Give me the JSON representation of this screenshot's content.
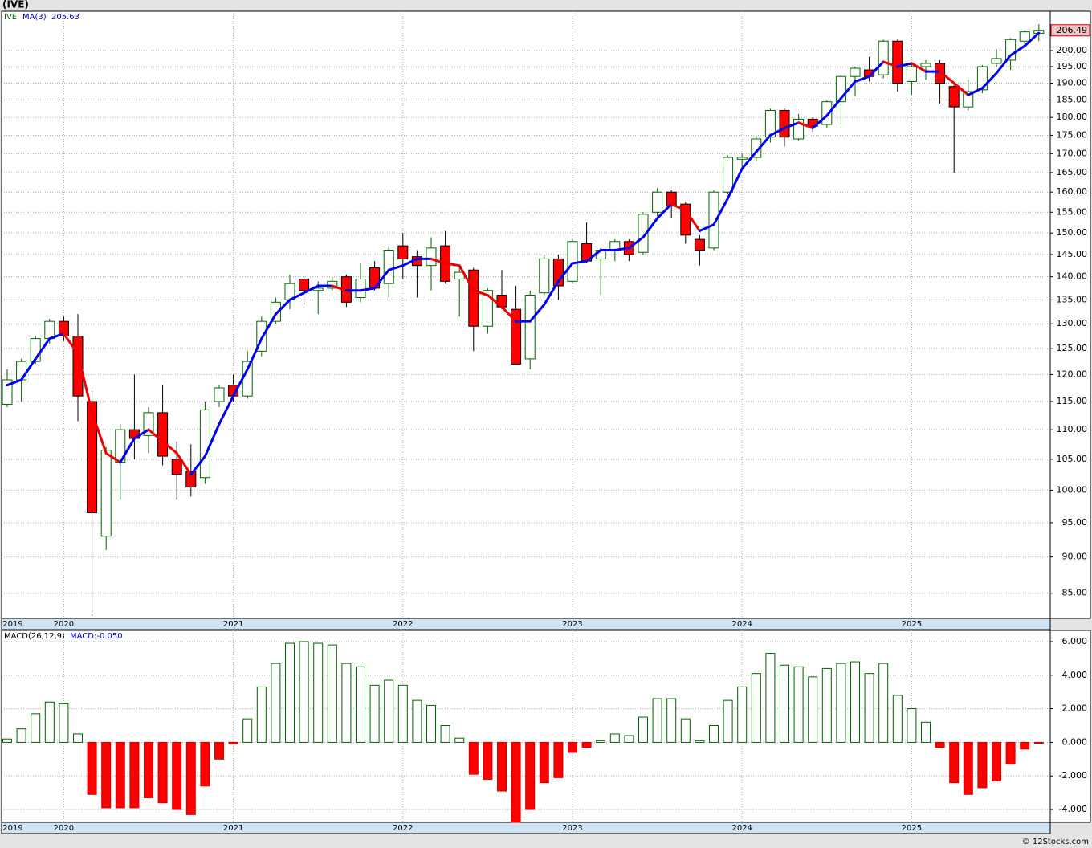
{
  "chart_data": [
    {
      "type": "candlestick",
      "title": "(IVE)",
      "ticker": "IVE",
      "log_scale": true,
      "grid": true,
      "up_color": "#006400",
      "down_color": "#ff0000",
      "categories": [
        "2019",
        null,
        null,
        null,
        "2020",
        null,
        null,
        null,
        null,
        null,
        null,
        null,
        null,
        null,
        null,
        null,
        "2021",
        null,
        null,
        null,
        null,
        null,
        null,
        null,
        null,
        null,
        null,
        null,
        "2022",
        null,
        null,
        null,
        null,
        null,
        null,
        null,
        null,
        null,
        null,
        null,
        "2023",
        null,
        null,
        null,
        null,
        null,
        null,
        null,
        null,
        null,
        null,
        null,
        "2024",
        null,
        null,
        null,
        null,
        null,
        null,
        null,
        null,
        null,
        null,
        null,
        "2025",
        null,
        null,
        null,
        null,
        null,
        null,
        null,
        null,
        null
      ],
      "open": [
        114.5,
        119,
        122.5,
        127,
        130.5,
        127.5,
        115,
        93,
        104.5,
        110,
        109,
        113,
        105,
        103,
        102,
        115,
        118,
        116,
        124.5,
        130.5,
        135,
        139.5,
        137,
        137.5,
        140,
        135.5,
        142,
        138.5,
        147,
        144.5,
        142.5,
        147,
        139.5,
        141.5,
        129.5,
        136,
        133,
        123,
        136.5,
        144,
        139,
        147.5,
        144,
        146,
        148,
        145.5,
        155,
        160,
        157,
        148.5,
        146.5,
        160,
        168.5,
        169,
        174.5,
        182,
        174,
        179.5,
        178,
        184.5,
        192,
        194,
        192.5,
        203,
        190.5,
        195,
        196,
        189,
        183,
        188,
        196,
        197,
        203,
        205.5
      ],
      "high": [
        121,
        123,
        127.5,
        131,
        131.5,
        132,
        117,
        107,
        111,
        120,
        114,
        118,
        108,
        107.5,
        115,
        118,
        120,
        124.5,
        131.5,
        135.5,
        140.5,
        140,
        139,
        140,
        140.5,
        143,
        143.5,
        147,
        150,
        146,
        149,
        150.5,
        142,
        142,
        137.5,
        141.5,
        138,
        137,
        145,
        145,
        148.5,
        152.5,
        146.5,
        148.5,
        148.5,
        155,
        161,
        160.5,
        157.5,
        149.5,
        160.5,
        169.5,
        170,
        175,
        182.5,
        182.5,
        181,
        180,
        185,
        192.5,
        195,
        198,
        203.5,
        203.5,
        196,
        197,
        197,
        189.5,
        191,
        195.5,
        200.5,
        204,
        206.5,
        208.5
      ],
      "low": [
        114,
        115,
        122,
        126,
        126.5,
        111.5,
        82,
        91,
        98.5,
        105,
        106,
        104,
        98.5,
        99,
        101,
        114,
        115,
        115.5,
        123.5,
        130,
        133,
        134,
        132,
        137,
        133.5,
        134.5,
        137,
        135.5,
        139.5,
        135.5,
        137,
        138.5,
        131.5,
        124.5,
        128,
        133,
        122,
        121,
        136,
        135,
        138.5,
        143,
        136,
        143.5,
        143.5,
        145,
        154,
        153.5,
        147.5,
        142.5,
        146,
        159.5,
        165.5,
        168,
        173,
        172,
        173.5,
        176,
        177,
        178,
        186,
        190.5,
        191.5,
        187.5,
        186.5,
        191,
        184,
        165,
        182,
        187,
        195,
        194,
        202,
        203
      ],
      "close": [
        119,
        122.5,
        127,
        130.5,
        127.5,
        116,
        96.5,
        106.5,
        110,
        108.5,
        113,
        105.5,
        102.5,
        100.5,
        113.5,
        117.5,
        116,
        122.5,
        130.5,
        134.5,
        138.5,
        137,
        137.5,
        139,
        134.5,
        139.5,
        137.5,
        146,
        144,
        142.5,
        146.5,
        139,
        141,
        129.5,
        137,
        133.5,
        122,
        136,
        144,
        138,
        148,
        143.5,
        146,
        148,
        145,
        154.5,
        160,
        156.5,
        149.5,
        146,
        160,
        169,
        169,
        174,
        182,
        174.5,
        179.5,
        177.5,
        184.5,
        192,
        194.5,
        192,
        203,
        190,
        195,
        196,
        190,
        183,
        187.5,
        195,
        197.5,
        203.5,
        206,
        206.49
      ],
      "last_label": "206.49",
      "ma": {
        "name": "MA(3)",
        "rising_color": "#0000ee",
        "falling_color": "#ee0000",
        "last_label": "205.63",
        "values": [
          118,
          119,
          123,
          127,
          128,
          124,
          113,
          106,
          104.5,
          108.5,
          110,
          108,
          106,
          102.5,
          105.5,
          111,
          116,
          121,
          127,
          132,
          135,
          136.5,
          138,
          138,
          137,
          137,
          137.5,
          141.5,
          142.5,
          144,
          144,
          143,
          142.5,
          137,
          136,
          133.5,
          130.5,
          130.5,
          134,
          139,
          143,
          143.5,
          146,
          146,
          146.5,
          149,
          153.5,
          157,
          155.5,
          150.5,
          152,
          158.5,
          166,
          170.5,
          175,
          177,
          178.5,
          177,
          180.5,
          185.5,
          190.5,
          192,
          196.5,
          195,
          196,
          193.5,
          193.5,
          190,
          186.5,
          188.5,
          193,
          198.5,
          201.5,
          205.63
        ]
      },
      "ylim": [
        81.7,
        212.8
      ],
      "yticks": [
        {
          "value": 85,
          "label": "85.00"
        },
        {
          "value": 90,
          "label": "90.00"
        },
        {
          "value": 95,
          "label": "95.00"
        },
        {
          "value": 100,
          "label": "100.00"
        },
        {
          "value": 105,
          "label": "105.00"
        },
        {
          "value": 110,
          "label": "110.00"
        },
        {
          "value": 115,
          "label": "115.00"
        },
        {
          "value": 120,
          "label": "120.00"
        },
        {
          "value": 125,
          "label": "125.00"
        },
        {
          "value": 130,
          "label": "130.00"
        },
        {
          "value": 135,
          "label": "135.00"
        },
        {
          "value": 140,
          "label": "140.00"
        },
        {
          "value": 145,
          "label": "145.00"
        },
        {
          "value": 150,
          "label": "150.00"
        },
        {
          "value": 155,
          "label": "155.00"
        },
        {
          "value": 160,
          "label": "160.00"
        },
        {
          "value": 165,
          "label": "165.00"
        },
        {
          "value": 170,
          "label": "170.00"
        },
        {
          "value": 175,
          "label": "175.00"
        },
        {
          "value": 180,
          "label": "180.00"
        },
        {
          "value": 185,
          "label": "185.00"
        },
        {
          "value": 190,
          "label": "190.00"
        },
        {
          "value": 195,
          "label": "195.00"
        },
        {
          "value": 200,
          "label": "200.00"
        }
      ]
    },
    {
      "type": "bar",
      "title": "MACD(26,12,9)",
      "last_label": "MACD:-0.050",
      "grid": true,
      "up_color": "#006400",
      "down_color": "#ff0000",
      "categories": [
        "2019",
        null,
        null,
        null,
        "2020",
        null,
        null,
        null,
        null,
        null,
        null,
        null,
        null,
        null,
        null,
        null,
        "2021",
        null,
        null,
        null,
        null,
        null,
        null,
        null,
        null,
        null,
        null,
        null,
        "2022",
        null,
        null,
        null,
        null,
        null,
        null,
        null,
        null,
        null,
        null,
        null,
        "2023",
        null,
        null,
        null,
        null,
        null,
        null,
        null,
        null,
        null,
        null,
        null,
        "2024",
        null,
        null,
        null,
        null,
        null,
        null,
        null,
        null,
        null,
        null,
        null,
        "2025",
        null,
        null,
        null,
        null,
        null,
        null,
        null,
        null,
        null
      ],
      "values": [
        0.2,
        0.8,
        1.7,
        2.4,
        2.3,
        0.5,
        -3.1,
        -3.9,
        -3.9,
        -3.9,
        -3.3,
        -3.6,
        -4.0,
        -4.3,
        -2.6,
        -1.0,
        -0.1,
        1.4,
        3.3,
        4.7,
        5.9,
        6.0,
        5.9,
        5.8,
        4.7,
        4.5,
        3.4,
        3.7,
        3.4,
        2.5,
        2.2,
        1.0,
        0.25,
        -1.9,
        -2.2,
        -2.9,
        -4.8,
        -4.0,
        -2.4,
        -2.1,
        -0.6,
        -0.3,
        0.1,
        0.5,
        0.4,
        1.5,
        2.6,
        2.6,
        1.4,
        0.1,
        1.0,
        2.5,
        3.3,
        4.1,
        5.3,
        4.6,
        4.5,
        3.9,
        4.4,
        4.7,
        4.8,
        4.1,
        4.7,
        2.8,
        2.0,
        1.2,
        -0.3,
        -2.4,
        -3.1,
        -2.7,
        -2.3,
        -1.3,
        -0.4,
        -0.05
      ],
      "ylim": [
        -4.762,
        6.667
      ],
      "yticks": [
        {
          "value": 6,
          "label": "6.000"
        },
        {
          "value": 4,
          "label": "4.000"
        },
        {
          "value": 2,
          "label": "2.000"
        },
        {
          "value": 0,
          "label": "0.000"
        },
        {
          "value": -2,
          "label": "-2.000"
        },
        {
          "value": -4,
          "label": "-4.000"
        }
      ]
    }
  ],
  "footer": "© 12Stocks.com"
}
